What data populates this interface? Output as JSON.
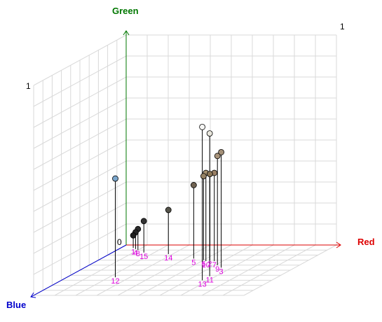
{
  "chart_data": {
    "type": "scatter",
    "projection": "3d",
    "axes": {
      "x": {
        "title": "Red",
        "range": [
          0,
          1
        ],
        "color": "#dd0000"
      },
      "y": {
        "title": "Green",
        "range": [
          0,
          1
        ],
        "color": "#007700"
      },
      "z": {
        "title": "Blue",
        "range": [
          0,
          1
        ],
        "color": "#0000cc"
      }
    },
    "tick_labels": {
      "origin": "0",
      "green_max": "1",
      "back_max": "1"
    },
    "label_color": "#dd00dd",
    "stem_color": "#000000",
    "grid": true,
    "points": [
      {
        "label": "1",
        "r": 0.06,
        "g": 0.06,
        "b": 0.06,
        "color": "#1e1e1e"
      },
      {
        "label": "2",
        "r": 0.53,
        "g": 0.41,
        "b": 0.3,
        "color": "#8a7555"
      },
      {
        "label": "3",
        "r": 0.65,
        "g": 0.55,
        "b": 0.45,
        "color": "#a39078"
      },
      {
        "label": "4",
        "r": 0.08,
        "g": 0.08,
        "b": 0.08,
        "color": "#242424"
      },
      {
        "label": "5",
        "r": 0.44,
        "g": 0.35,
        "b": 0.27,
        "color": "#706352"
      },
      {
        "label": "6",
        "r": 0.5,
        "g": 0.4,
        "b": 0.3,
        "color": "#958163"
      },
      {
        "label": "7",
        "r": 0.56,
        "g": 0.42,
        "b": 0.32,
        "color": "#9a8065"
      },
      {
        "label": "8",
        "r": 0.1,
        "g": 0.1,
        "b": 0.1,
        "color": "#2c2c2c"
      },
      {
        "label": "9",
        "r": 0.61,
        "g": 0.52,
        "b": 0.4,
        "color": "#a8937a"
      },
      {
        "label": "10",
        "r": 0.52,
        "g": 0.42,
        "b": 0.32,
        "color": "#a5906f"
      },
      {
        "label": "11",
        "r": 0.67,
        "g": 0.68,
        "b": 0.62,
        "color": "#e8e6dc"
      },
      {
        "label": "12",
        "r": 0.23,
        "g": 0.47,
        "b": 0.64,
        "color": "#7aa6cc"
      },
      {
        "label": "13",
        "r": 0.67,
        "g": 0.73,
        "b": 0.7,
        "color": "#f7f7f5"
      },
      {
        "label": "14",
        "r": 0.28,
        "g": 0.21,
        "b": 0.18,
        "color": "#55544a"
      },
      {
        "label": "15",
        "r": 0.15,
        "g": 0.15,
        "b": 0.15,
        "color": "#333333"
      }
    ]
  }
}
